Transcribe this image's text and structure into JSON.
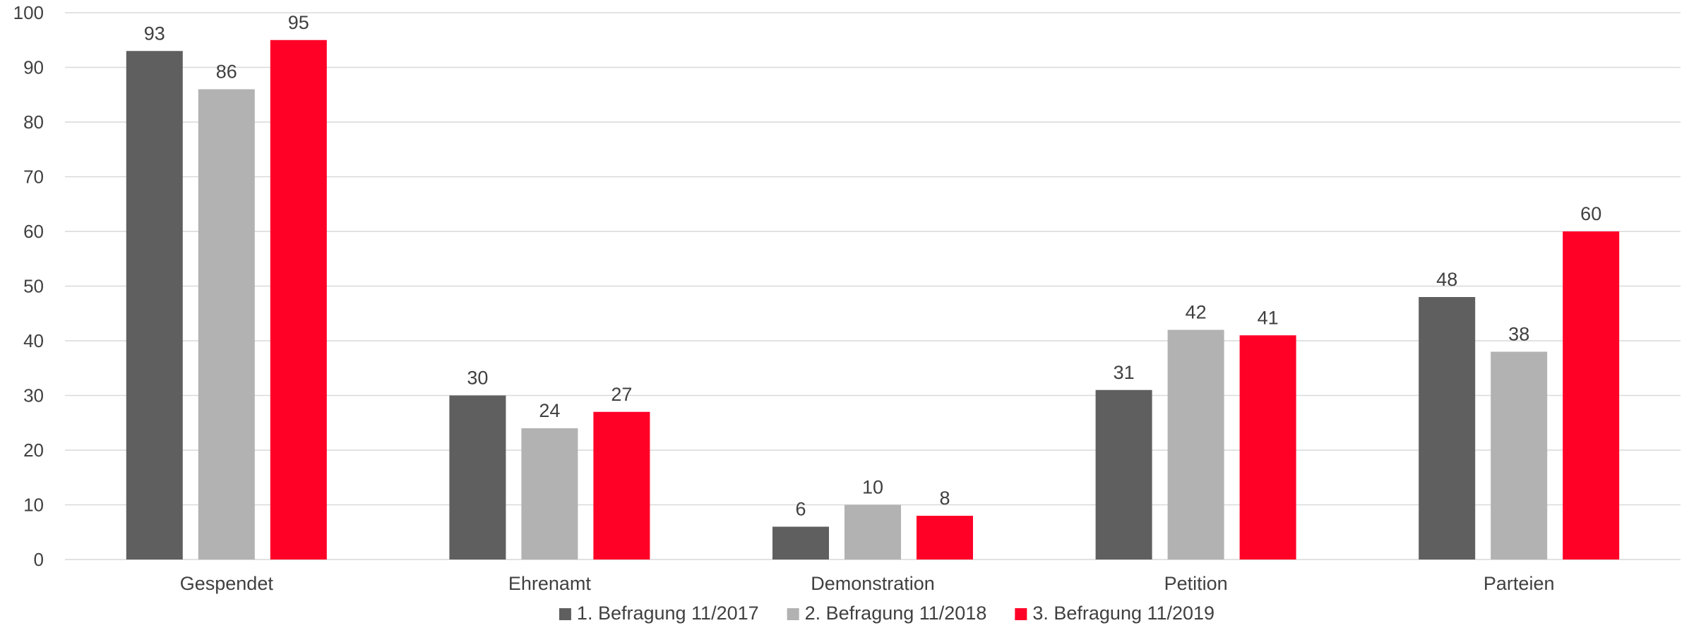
{
  "chart_data": {
    "type": "bar",
    "title": "",
    "xlabel": "",
    "ylabel": "",
    "ylim": [
      0,
      100
    ],
    "yticks": [
      0,
      10,
      20,
      30,
      40,
      50,
      60,
      70,
      80,
      90,
      100
    ],
    "grid": true,
    "legend_position": "bottom",
    "categories": [
      "Gespendet",
      "Ehrenamt",
      "Demonstration",
      "Petition",
      "Parteien"
    ],
    "series": [
      {
        "name": "1. Befragung 11/2017",
        "color": "#5f5f5f",
        "values": [
          93,
          30,
          6,
          31,
          48
        ]
      },
      {
        "name": "2. Befragung 11/2018",
        "color": "#b2b2b2",
        "values": [
          86,
          24,
          10,
          42,
          38
        ]
      },
      {
        "name": "3. Befragung 11/2019",
        "color": "#ff0027",
        "values": [
          95,
          27,
          8,
          41,
          60
        ]
      }
    ],
    "data_labels": true
  }
}
